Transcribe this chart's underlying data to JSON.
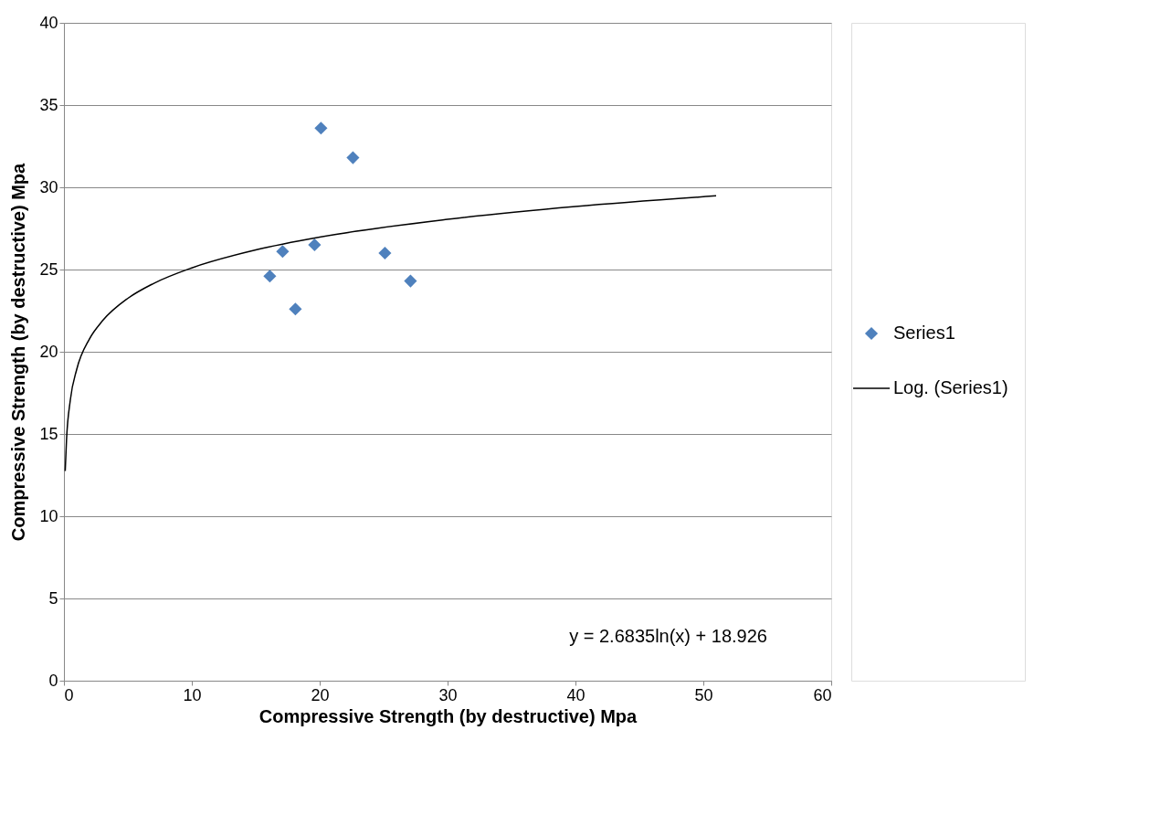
{
  "chart_data": {
    "type": "scatter",
    "xlabel": "Compressive Strength (by destructive) Mpa",
    "ylabel": "Compressive Strength (by destructive) Mpa",
    "xlim": [
      0,
      60
    ],
    "xticks": [
      0,
      10,
      20,
      30,
      40,
      50,
      60
    ],
    "ylim": [
      0,
      40
    ],
    "yticks": [
      0,
      5,
      10,
      15,
      20,
      25,
      30,
      35,
      40
    ],
    "grid": "y",
    "legend": "right",
    "series": [
      {
        "name": "Series1",
        "type": "scatter",
        "marker": "diamond",
        "color": "#4f81bd",
        "x": [
          16.1,
          17.1,
          18.1,
          19.6,
          20.1,
          22.6,
          25.1,
          27.1
        ],
        "values": [
          24.6,
          26.1,
          22.6,
          26.5,
          33.6,
          31.8,
          26.0,
          24.3
        ]
      },
      {
        "name": "Log. (Series1)",
        "type": "line",
        "marker": "none",
        "line_style": "solid",
        "color": "#000000",
        "x": [
          0.1,
          0.2,
          0.5,
          1,
          2,
          3,
          5,
          7,
          10,
          15,
          20,
          30,
          40,
          51
        ],
        "values": [
          12.75,
          14.61,
          17.07,
          18.93,
          20.79,
          21.87,
          23.25,
          24.15,
          25.1,
          26.19,
          26.97,
          28.05,
          28.83,
          29.48
        ]
      }
    ],
    "annotations": [
      "y = 2.6835ln(x)  + 18.926"
    ]
  }
}
